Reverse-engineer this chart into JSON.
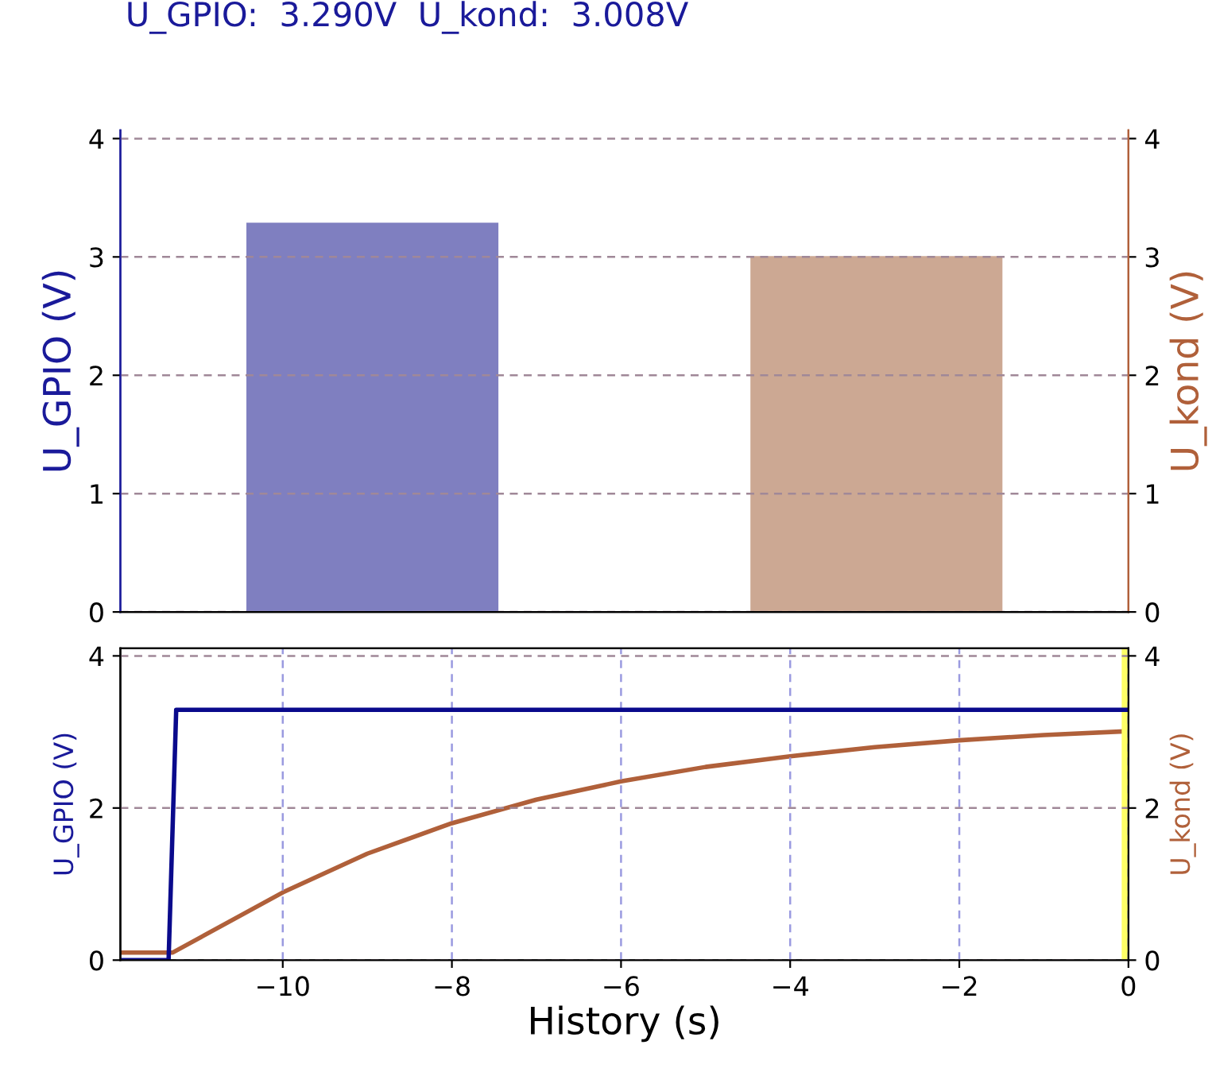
{
  "chart_data": [
    {
      "type": "bar",
      "title": "U_GPIO:  3.290V  U_kond:  3.008V",
      "ylabel": "U_GPIO (V)",
      "y2label": "U_kond (V)",
      "categories": [
        null,
        null
      ],
      "series": [
        {
          "color": "#7f7fc0",
          "values": [
            3.29,
            null
          ]
        },
        {
          "color": "#cca893",
          "values": [
            null,
            3.008
          ],
          "axis": "y2"
        }
      ],
      "ylim": [
        0,
        4.07
      ],
      "yticks": [
        0,
        1,
        2,
        3,
        4
      ],
      "y2lim": [
        0,
        4.07
      ],
      "y2ticks": [
        0,
        1,
        2,
        3,
        4
      ],
      "grid": "y"
    },
    {
      "type": "line",
      "xlabel": "History (s)",
      "ylabel": "U_GPIO (V)",
      "y2label": "U_kond (V)",
      "series": [
        {
          "color": "#0a0a8c",
          "x": [
            -11.92,
            -11.35,
            -11.26,
            0
          ],
          "values": [
            0,
            0,
            3.29,
            3.29
          ]
        },
        {
          "color": "#b0603a",
          "axis": "y2",
          "x": [
            -11.92,
            -11.3,
            -10,
            -9,
            -8,
            -7,
            -6,
            -5,
            -4,
            -3,
            -2,
            -1,
            0
          ],
          "values": [
            0.1,
            0.1,
            0.89,
            1.4,
            1.8,
            2.11,
            2.35,
            2.54,
            2.68,
            2.8,
            2.89,
            2.96,
            3.01
          ]
        }
      ],
      "xlim": [
        -11.92,
        0
      ],
      "xticks": [
        {
          "value": -10,
          "label": "−10"
        },
        {
          "value": -8,
          "label": "−8"
        },
        {
          "value": -6,
          "label": "−6"
        },
        {
          "value": -4,
          "label": "−4"
        },
        {
          "value": -2,
          "label": "−2"
        },
        0
      ],
      "ylim": [
        0,
        4.1
      ],
      "yticks": [
        0,
        2,
        4
      ],
      "y2lim": [
        0,
        4.1
      ],
      "y2ticks": [
        0,
        2,
        4
      ],
      "bands": [
        {
          "axis": "x",
          "from": -0.08,
          "to": 0,
          "color": "#ffff66"
        }
      ],
      "grid": true
    }
  ]
}
